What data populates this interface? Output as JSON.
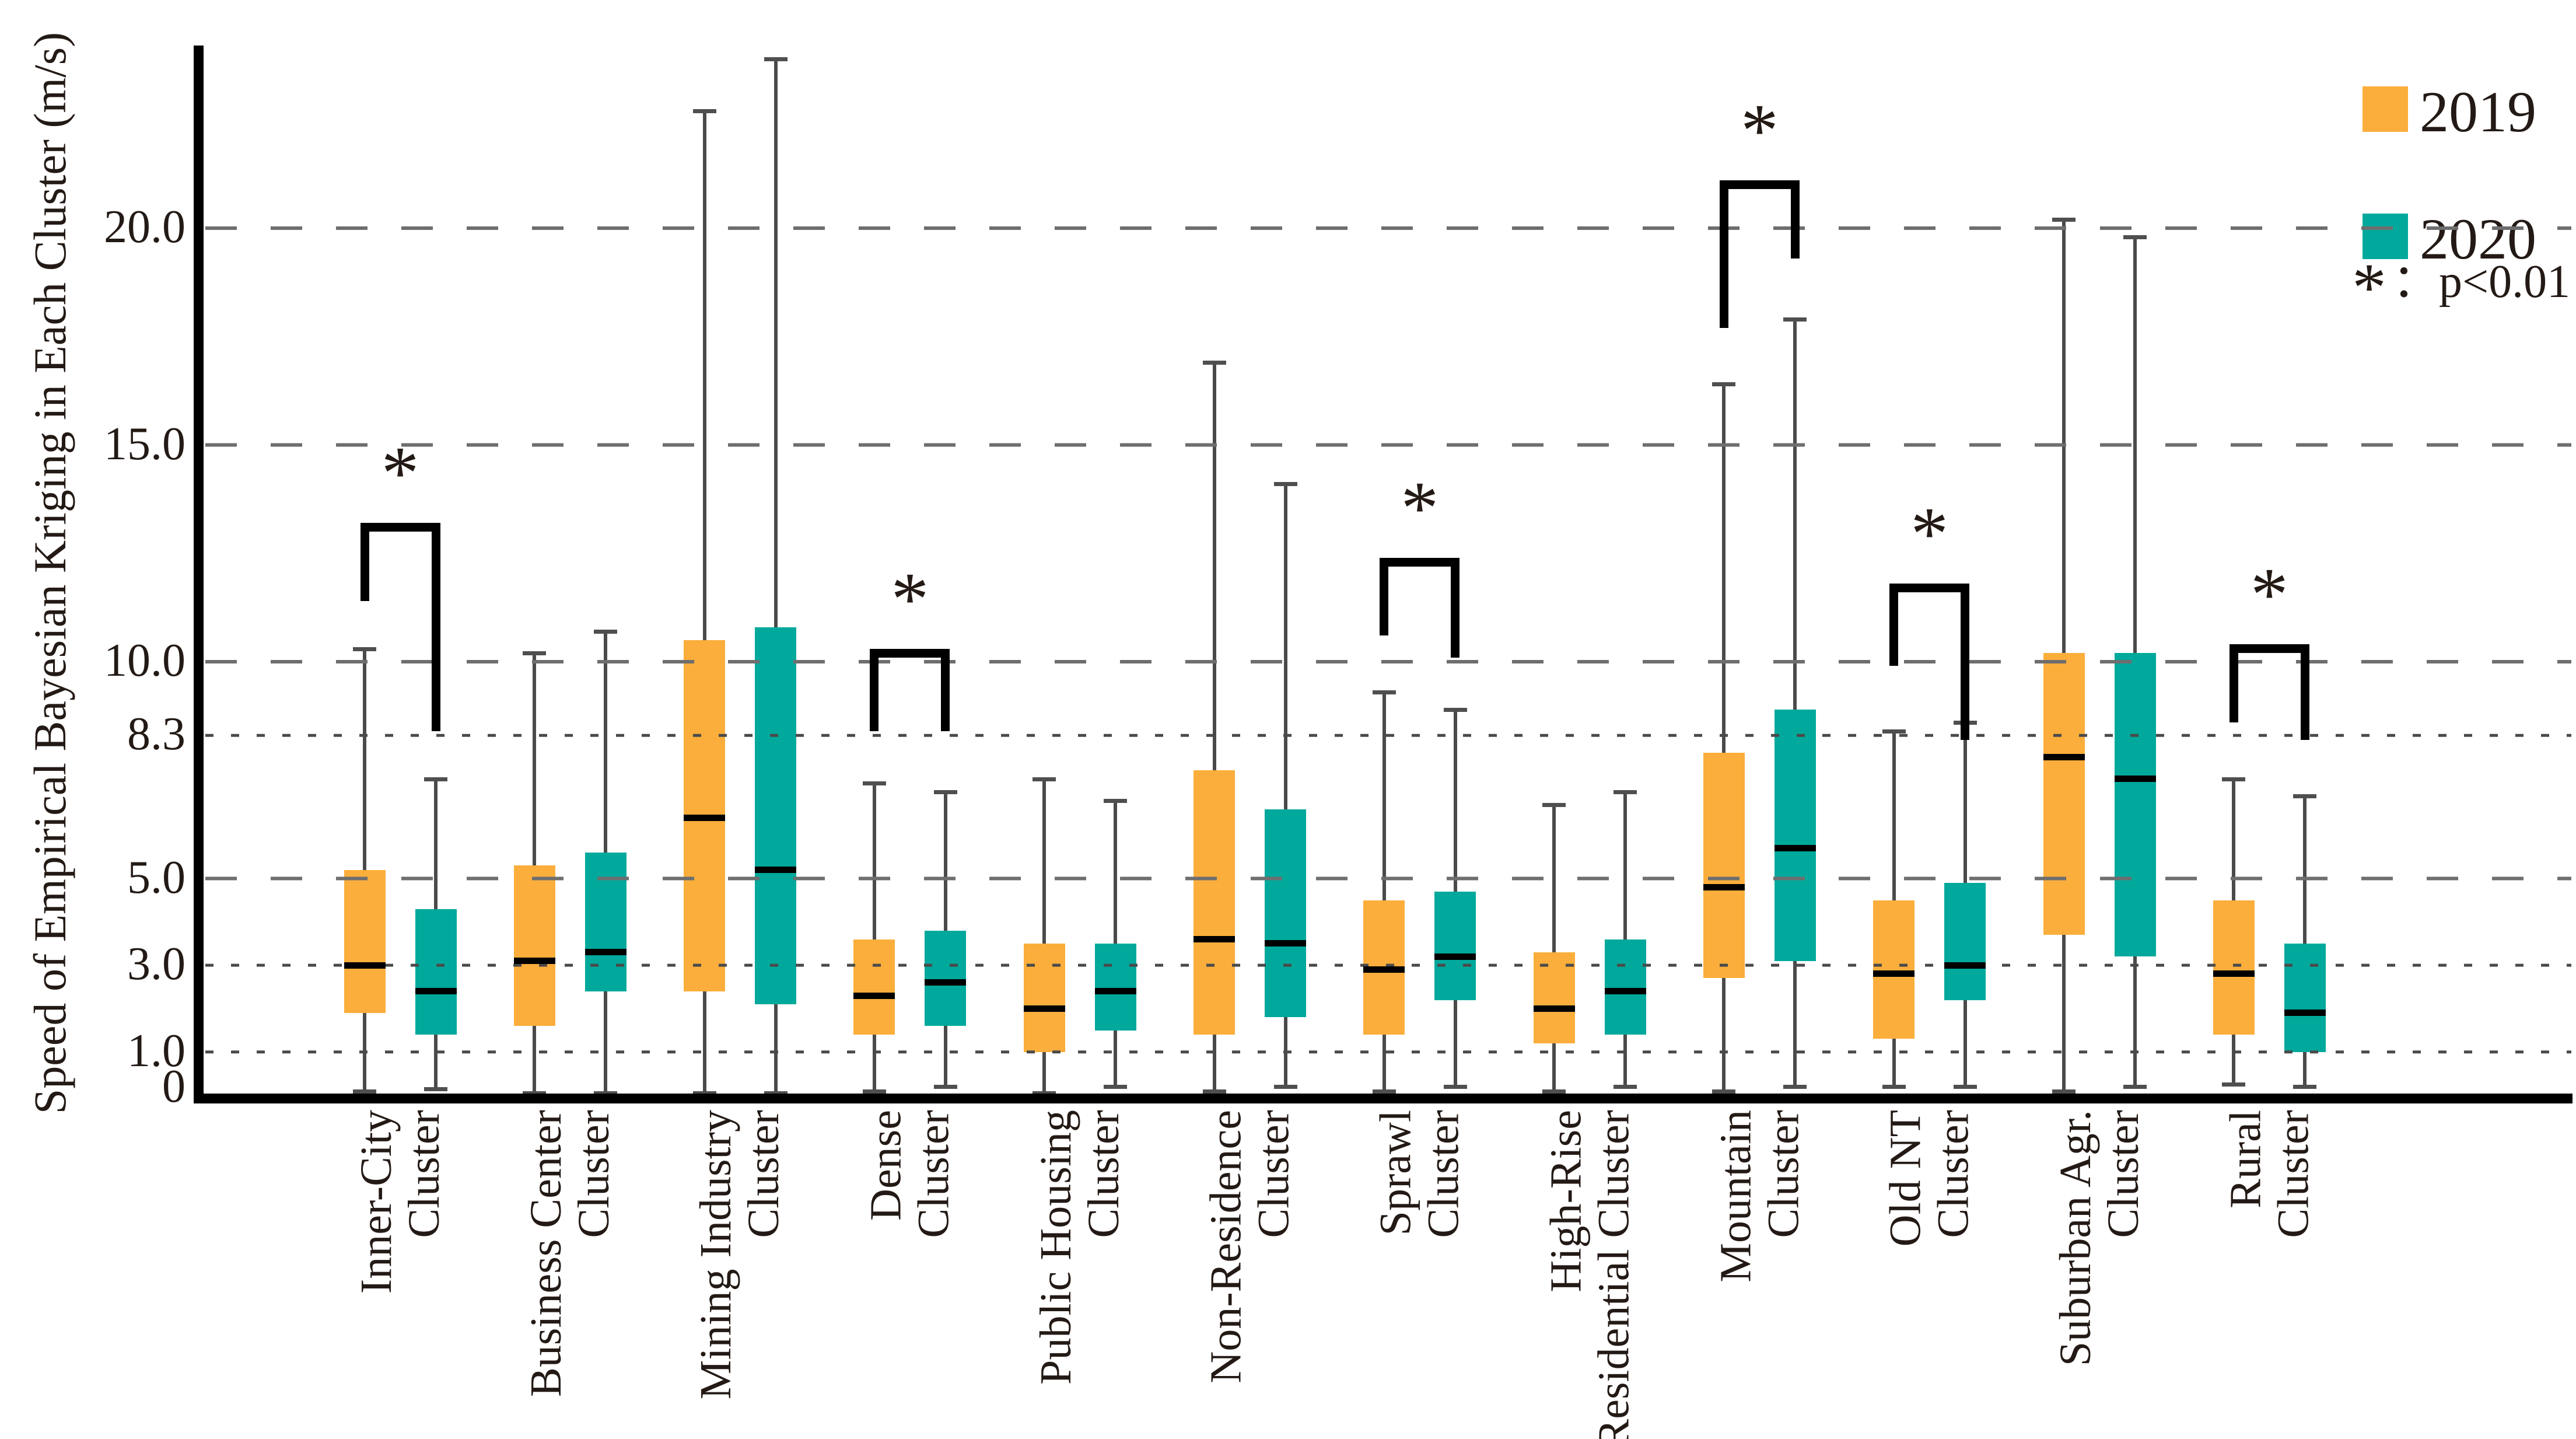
{
  "chart_data": {
    "type": "box",
    "title": "",
    "ylabel": "Speed of Empirical Bayesian Kriging in Each Cluster (m/s)",
    "xlabel": "",
    "ylim": [
      0,
      24.1
    ],
    "grid": "horizontal-only",
    "legend_position": "top-right",
    "series": [
      {
        "name": "2019",
        "color": "#FBAE3B"
      },
      {
        "name": "2020",
        "color": "#00A99C"
      }
    ],
    "significance_note": {
      "star": "*",
      "rest": "：p<0.01"
    },
    "y_ticks": [
      {
        "label": "20.0",
        "value": 20.0,
        "grid": "dashed"
      },
      {
        "label": "15.0",
        "value": 15.0,
        "grid": "dashed"
      },
      {
        "label": "10.0",
        "value": 10.0,
        "grid": "dashed"
      },
      {
        "label": "8.3",
        "value": 8.3,
        "grid": "dotted"
      },
      {
        "label": "5.0",
        "value": 5.0,
        "grid": "dashed"
      },
      {
        "label": "3.0",
        "value": 3.0,
        "grid": "dotted"
      },
      {
        "label": "1.0",
        "value": 1.0,
        "grid": "dotted"
      },
      {
        "label": "0",
        "value": 0.0,
        "grid": "none"
      }
    ],
    "clusters": [
      {
        "name": "Inner-City Cluster",
        "label_lines": [
          "Inner-City",
          "Cluster"
        ],
        "boxes": {
          "2019": {
            "min": 0.1,
            "q1": 1.9,
            "median": 3.0,
            "q3": 5.2,
            "max": 10.3
          },
          "2020": {
            "min": 0.15,
            "q1": 1.4,
            "median": 2.4,
            "q3": 4.3,
            "max": 7.3
          }
        },
        "significant": true,
        "bracket": {
          "top": 13.0,
          "left_drop": 11.4,
          "right_drop": 8.4
        }
      },
      {
        "name": "Business Center Cluster",
        "label_lines": [
          "Business Center",
          "Cluster"
        ],
        "boxes": {
          "2019": {
            "min": 0.05,
            "q1": 1.6,
            "median": 3.1,
            "q3": 5.3,
            "max": 10.2
          },
          "2020": {
            "min": 0.05,
            "q1": 2.4,
            "median": 3.3,
            "q3": 5.6,
            "max": 10.7
          }
        },
        "significant": false,
        "bracket": null
      },
      {
        "name": "Mining Industry Cluster",
        "label_lines": [
          "Mining Industry",
          "Cluster"
        ],
        "boxes": {
          "2019": {
            "min": 0.05,
            "q1": 2.4,
            "median": 6.4,
            "q3": 10.5,
            "max": 22.7
          },
          "2020": {
            "min": 0.05,
            "q1": 2.1,
            "median": 5.2,
            "q3": 10.8,
            "max": 23.9
          }
        },
        "significant": false,
        "bracket": null
      },
      {
        "name": "Dense Cluster",
        "label_lines": [
          "Dense",
          "Cluster"
        ],
        "boxes": {
          "2019": {
            "min": 0.1,
            "q1": 1.4,
            "median": 2.3,
            "q3": 3.6,
            "max": 7.2
          },
          "2020": {
            "min": 0.2,
            "q1": 1.6,
            "median": 2.6,
            "q3": 3.8,
            "max": 7.0
          }
        },
        "significant": true,
        "bracket": {
          "top": 10.1,
          "left_drop": 8.4,
          "right_drop": 8.4
        }
      },
      {
        "name": "Public Housing Cluster",
        "label_lines": [
          "Public Housing",
          "Cluster"
        ],
        "boxes": {
          "2019": {
            "min": 0.05,
            "q1": 1.0,
            "median": 2.0,
            "q3": 3.5,
            "max": 7.3
          },
          "2020": {
            "min": 0.2,
            "q1": 1.5,
            "median": 2.4,
            "q3": 3.5,
            "max": 6.8
          }
        },
        "significant": false,
        "bracket": null
      },
      {
        "name": "Non-Residence Cluster",
        "label_lines": [
          "Non-Residence",
          "Cluster"
        ],
        "boxes": {
          "2019": {
            "min": 0.1,
            "q1": 1.4,
            "median": 3.6,
            "q3": 7.5,
            "max": 16.9
          },
          "2020": {
            "min": 0.2,
            "q1": 1.8,
            "median": 3.5,
            "q3": 6.6,
            "max": 14.1
          }
        },
        "significant": false,
        "bracket": null
      },
      {
        "name": "Sprawl Cluster",
        "label_lines": [
          "Sprawl",
          "Cluster"
        ],
        "boxes": {
          "2019": {
            "min": 0.1,
            "q1": 1.4,
            "median": 2.9,
            "q3": 4.5,
            "max": 9.3
          },
          "2020": {
            "min": 0.2,
            "q1": 2.2,
            "median": 3.2,
            "q3": 4.7,
            "max": 8.9
          }
        },
        "significant": true,
        "bracket": {
          "top": 12.2,
          "left_drop": 10.6,
          "right_drop": 10.1
        }
      },
      {
        "name": "High-Rise Residential Cluster",
        "label_lines": [
          "High-Rise",
          "Residential Cluster"
        ],
        "boxes": {
          "2019": {
            "min": 0.1,
            "q1": 1.2,
            "median": 2.0,
            "q3": 3.3,
            "max": 6.7
          },
          "2020": {
            "min": 0.2,
            "q1": 1.4,
            "median": 2.4,
            "q3": 3.6,
            "max": 7.0
          }
        },
        "significant": false,
        "bracket": null
      },
      {
        "name": "Mountain Cluster",
        "label_lines": [
          "Mountain",
          "Cluster"
        ],
        "boxes": {
          "2019": {
            "min": 0.1,
            "q1": 2.7,
            "median": 4.8,
            "q3": 7.9,
            "max": 16.4
          },
          "2020": {
            "min": 0.2,
            "q1": 3.1,
            "median": 5.7,
            "q3": 8.9,
            "max": 17.9
          }
        },
        "significant": true,
        "bracket": {
          "top": 20.9,
          "left_drop": 17.7,
          "right_drop": 19.3
        }
      },
      {
        "name": "Old NT Cluster",
        "label_lines": [
          "Old NT",
          "Cluster"
        ],
        "boxes": {
          "2019": {
            "min": 0.2,
            "q1": 1.3,
            "median": 2.8,
            "q3": 4.5,
            "max": 8.4
          },
          "2020": {
            "min": 0.2,
            "q1": 2.2,
            "median": 3.0,
            "q3": 4.9,
            "max": 8.6
          }
        },
        "significant": true,
        "bracket": {
          "top": 11.6,
          "left_drop": 9.9,
          "right_drop": 8.2
        }
      },
      {
        "name": "Suburban Agr. Cluster",
        "label_lines": [
          "Suburban Agr.",
          "Cluster"
        ],
        "boxes": {
          "2019": {
            "min": 0.1,
            "q1": 3.7,
            "median": 7.8,
            "q3": 10.2,
            "max": 20.2
          },
          "2020": {
            "min": 0.2,
            "q1": 3.2,
            "median": 7.3,
            "q3": 10.2,
            "max": 19.8
          }
        },
        "significant": false,
        "bracket": null
      },
      {
        "name": "Rural Cluster",
        "label_lines": [
          "Rural",
          "Cluster"
        ],
        "boxes": {
          "2019": {
            "min": 0.25,
            "q1": 1.4,
            "median": 2.8,
            "q3": 4.5,
            "max": 7.3
          },
          "2020": {
            "min": 0.2,
            "q1": 1.0,
            "median": 1.9,
            "q3": 3.5,
            "max": 6.9
          }
        },
        "significant": false,
        "bracket": {
          "top": 10.2,
          "left_drop": 8.6,
          "right_drop": 8.2
        }
      }
    ],
    "colors": {
      "series_2019": "#FBAE3B",
      "series_2020": "#00A99C",
      "median_line": "#000000",
      "whisker": "#4a4a4a",
      "axis": "#000000",
      "grid_dashed": "#6e6e6e",
      "grid_dotted": "#4a4a4a",
      "text": "#241a15"
    }
  }
}
